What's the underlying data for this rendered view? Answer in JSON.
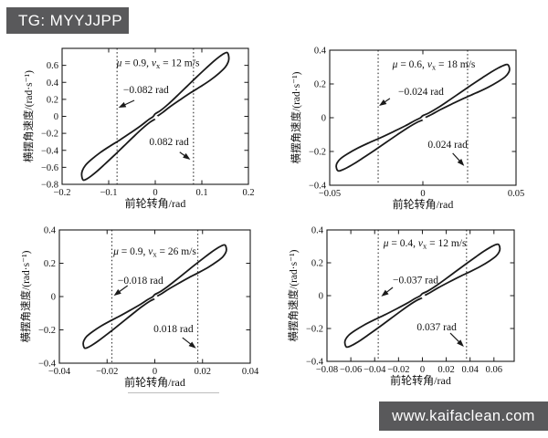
{
  "watermarks": {
    "tag": "TG: MYYJJPP",
    "site": "www.kaifaclean.com"
  },
  "colors": {
    "curve": "#1a1a1a",
    "guide": "#3c3c3c",
    "text": "#111111",
    "watermark_bg": "#59595b",
    "watermark_text": "#ffffff",
    "background": "#ffffff"
  },
  "loop_shape": [
    [
      -1.0,
      -0.92
    ],
    [
      -0.99,
      -0.85
    ],
    [
      -0.95,
      -0.77
    ],
    [
      -0.87,
      -0.68
    ],
    [
      -0.75,
      -0.57
    ],
    [
      -0.62,
      -0.47
    ],
    [
      -0.48,
      -0.37
    ],
    [
      -0.34,
      -0.262
    ],
    [
      -0.2,
      -0.15
    ],
    [
      -0.1,
      -0.06
    ],
    [
      -0.03,
      -0.004
    ],
    [
      0.0,
      0.04
    ],
    [
      0.07,
      0.09
    ],
    [
      0.18,
      0.195
    ],
    [
      0.3,
      0.325
    ],
    [
      0.43,
      0.47
    ],
    [
      0.56,
      0.615
    ],
    [
      0.69,
      0.755
    ],
    [
      0.79,
      0.86
    ],
    [
      0.87,
      0.935
    ],
    [
      0.935,
      0.985
    ],
    [
      0.98,
      0.998
    ],
    [
      1.0,
      0.92
    ],
    [
      0.99,
      0.85
    ],
    [
      0.95,
      0.77
    ],
    [
      0.87,
      0.68
    ],
    [
      0.75,
      0.57
    ],
    [
      0.62,
      0.47
    ],
    [
      0.48,
      0.37
    ],
    [
      0.34,
      0.262
    ],
    [
      0.2,
      0.15
    ],
    [
      0.1,
      0.06
    ],
    [
      0.03,
      0.004
    ],
    [
      0.0,
      -0.04
    ],
    [
      -0.07,
      -0.09
    ],
    [
      -0.18,
      -0.195
    ],
    [
      -0.3,
      -0.325
    ],
    [
      -0.43,
      -0.47
    ],
    [
      -0.56,
      -0.615
    ],
    [
      -0.69,
      -0.755
    ],
    [
      -0.79,
      -0.86
    ],
    [
      -0.87,
      -0.935
    ],
    [
      -0.935,
      -0.985
    ],
    [
      -0.98,
      -0.998
    ]
  ],
  "chart_data": [
    {
      "key": "top-left",
      "type": "line",
      "title": {
        "mu": "0.9",
        "speed": "12 m/s",
        "pos": [
          0.006,
          0.635
        ]
      },
      "xlabel": "前轮转角/rad",
      "ylabel": "横摆角速度/(rad·s⁻¹)",
      "xlim": [
        -0.2,
        0.2
      ],
      "ylim": [
        -0.8,
        0.8
      ],
      "xtick_values": [
        -0.2,
        -0.1,
        0,
        0.1,
        0.2
      ],
      "xtick_labels": [
        "−0.2",
        "−0.1",
        "0",
        "0.1",
        "0.2"
      ],
      "ytick_values": [
        -0.8,
        -0.6,
        -0.4,
        -0.2,
        0,
        0.2,
        0.4,
        0.6
      ],
      "ytick_labels": [
        "−0.8",
        "−0.6",
        "−0.4",
        "−0.2",
        "0",
        "0.2",
        "0.4",
        "0.6"
      ],
      "guide_lines_x": [
        -0.082,
        0.082
      ],
      "loop_amplitude": [
        0.158,
        0.75
      ],
      "annotations": [
        {
          "label": "−0.082 rad",
          "text_pos": [
            -0.02,
            0.317
          ],
          "arrow_from": [
            -0.045,
            0.188
          ],
          "arrow_to": [
            -0.079,
            0.102
          ]
        },
        {
          "label": "0.082 rad",
          "text_pos": [
            0.0295,
            -0.295
          ],
          "arrow_from": [
            0.0525,
            -0.421
          ],
          "arrow_to": [
            0.0753,
            -0.51
          ]
        }
      ]
    },
    {
      "key": "top-right",
      "type": "line",
      "title": {
        "mu": "0.6",
        "speed": "18 m/s",
        "pos": [
          0.0059,
          0.319
        ]
      },
      "xlabel": "前轮转角/rad",
      "ylabel": "横摆角速度/(rad·s⁻¹)",
      "xlim": [
        -0.05,
        0.05
      ],
      "ylim": [
        -0.4,
        0.4
      ],
      "xtick_values": [
        -0.05,
        0,
        0.05
      ],
      "xtick_labels": [
        "−0.05",
        "0",
        "0.05"
      ],
      "ytick_values": [
        -0.4,
        -0.2,
        0,
        0.2,
        0.4
      ],
      "ytick_labels": [
        "−0.4",
        "−0.2",
        "0",
        "0.2",
        "0.4"
      ],
      "guide_lines_x": [
        -0.024,
        0.024
      ],
      "loop_amplitude": [
        0.0465,
        0.315
      ],
      "annotations": [
        {
          "label": "−0.024 rad",
          "text_pos": [
            -0.001,
            0.157
          ],
          "arrow_from": [
            -0.0177,
            0.114
          ],
          "arrow_to": [
            -0.0235,
            0.07
          ]
        },
        {
          "label": "0.024 rad",
          "text_pos": [
            0.0133,
            -0.157
          ],
          "arrow_from": [
            0.016,
            -0.21
          ],
          "arrow_to": [
            0.0222,
            -0.286
          ]
        }
      ]
    },
    {
      "key": "bottom-left",
      "type": "line",
      "title": {
        "mu": "0.9",
        "speed": "26 m/s",
        "pos": [
          0.0,
          0.275
        ]
      },
      "xlabel": "前轮转角/rad",
      "ylabel": "横摆角速度/(rad·s⁻¹)",
      "xlim": [
        -0.04,
        0.04
      ],
      "ylim": [
        -0.4,
        0.4
      ],
      "xtick_values": [
        -0.04,
        -0.02,
        0,
        0.02,
        0.04
      ],
      "xtick_labels": [
        "−0.04",
        "−0.02",
        "0",
        "0.02",
        "0.04"
      ],
      "ytick_values": [
        -0.4,
        -0.2,
        0,
        0.2,
        0.4
      ],
      "ytick_labels": [
        "−0.4",
        "−0.2",
        "0",
        "0.2",
        "0.4"
      ],
      "guide_lines_x": [
        -0.018,
        0.018
      ],
      "loop_amplitude": [
        0.03,
        0.31
      ],
      "annotations": [
        {
          "label": "−0.018 rad",
          "text_pos": [
            -0.006,
            0.1
          ],
          "arrow_from": [
            -0.0114,
            0.066
          ],
          "arrow_to": [
            -0.0172,
            0.005
          ]
        },
        {
          "label": "0.018 rad",
          "text_pos": [
            0.0078,
            -0.192
          ],
          "arrow_from": [
            0.0116,
            -0.247
          ],
          "arrow_to": [
            0.0173,
            -0.311
          ]
        }
      ]
    },
    {
      "key": "bottom-right",
      "type": "line",
      "title": {
        "mu": "0.4",
        "speed": "12 m/s",
        "pos": [
          0.002,
          0.322
        ]
      },
      "xlabel": "前轮转角/rad",
      "ylabel": "横摆角速度/(rad·s⁻¹)",
      "xlim": [
        -0.08,
        0.077
      ],
      "ylim": [
        -0.4,
        0.4
      ],
      "xtick_values": [
        -0.08,
        -0.06,
        -0.04,
        -0.02,
        0,
        0.02,
        0.04,
        0.06
      ],
      "xtick_labels": [
        "−0.08",
        "−0.06",
        "−0.04",
        "−0.02",
        "0",
        "0.02",
        "0.04",
        "0.06"
      ],
      "ytick_values": [
        -0.4,
        -0.2,
        0,
        0.2,
        0.4
      ],
      "ytick_labels": [
        "−0.4",
        "−0.2",
        "0",
        "0.2",
        "0.4"
      ],
      "guide_lines_x": [
        -0.037,
        0.037
      ],
      "loop_amplitude": [
        0.065,
        0.313
      ],
      "annotations": [
        {
          "label": "−0.037 rad",
          "text_pos": [
            -0.0057,
            0.096
          ],
          "arrow_from": [
            -0.0248,
            0.05
          ],
          "arrow_to": [
            -0.0345,
            -0.005
          ]
        },
        {
          "label": "0.037 rad",
          "text_pos": [
            0.012,
            -0.189
          ],
          "arrow_from": [
            0.0234,
            -0.228
          ],
          "arrow_to": [
            0.0348,
            -0.311
          ]
        }
      ]
    }
  ]
}
